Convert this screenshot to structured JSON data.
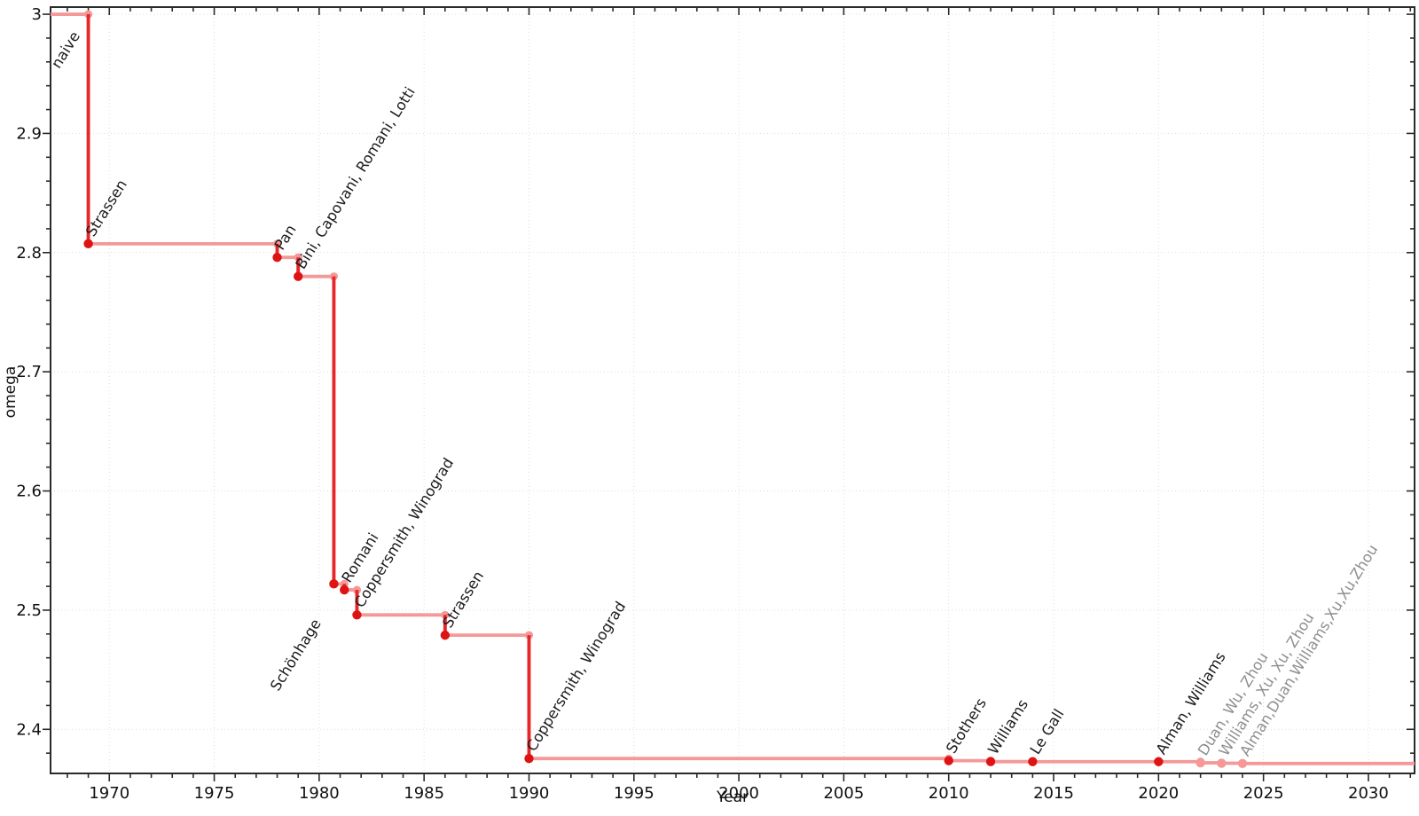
{
  "page": {
    "background": "#ffffff"
  },
  "chart_data": {
    "type": "line",
    "variant": "step-post-with-vertical-drops",
    "title": "",
    "xlabel": "Year",
    "ylabel": "omega",
    "xlim": [
      1967.2,
      2032.2
    ],
    "ylim": [
      2.363,
      3.006
    ],
    "x_major_ticks": [
      1970,
      1975,
      1980,
      1985,
      1990,
      1995,
      2000,
      2005,
      2010,
      2015,
      2020,
      2025,
      2030
    ],
    "x_minor_step": 1,
    "y_major_ticks": [
      2.4,
      2.5,
      2.6,
      2.7,
      2.8,
      2.9,
      3
    ],
    "y_tick_labels": [
      "2.4",
      "2.5",
      "2.6",
      "2.7",
      "2.8",
      "2.9",
      "3"
    ],
    "y_minor_step": 0.02,
    "grid": "dotted-at-major-ticks",
    "legend_position": "none",
    "initial": {
      "label": "naive",
      "omega": 3,
      "label_side": "below"
    },
    "points": [
      {
        "year": 1969,
        "omega": 2.8074,
        "label": "Strassen"
      },
      {
        "year": 1978,
        "omega": 2.796,
        "label": "Pan"
      },
      {
        "year": 1979,
        "omega": 2.78,
        "label": "Bini, Capovani, Romani, Lotti"
      },
      {
        "year": 1980.7,
        "omega": 2.522,
        "label": "Schönhage",
        "label_side": "below"
      },
      {
        "year": 1981.2,
        "omega": 2.517,
        "label": "Romani"
      },
      {
        "year": 1981.8,
        "omega": 2.496,
        "label": "Coppersmith, Winograd"
      },
      {
        "year": 1986,
        "omega": 2.479,
        "label": "Strassen"
      },
      {
        "year": 1990,
        "omega": 2.3755,
        "label": "Coppersmith, Winograd"
      },
      {
        "year": 2010,
        "omega": 2.3737,
        "label": "Stothers"
      },
      {
        "year": 2012,
        "omega": 2.3729,
        "label": "Williams"
      },
      {
        "year": 2014,
        "omega": 2.37287,
        "label": "Le Gall"
      },
      {
        "year": 2020,
        "omega": 2.37286,
        "label": "Alman, Williams"
      },
      {
        "year": 2022,
        "omega": 2.37187,
        "label": "Duan, Wu, Zhou",
        "recent": true
      },
      {
        "year": 2023,
        "omega": 2.37155,
        "label": "Williams, Xu, Xu, Zhou",
        "recent": true
      },
      {
        "year": 2024,
        "omega": 2.37134,
        "label": "Alman,Duan,Williams,Xu,Xu,Zhou",
        "recent": true
      }
    ]
  },
  "style": {
    "step_line_color": "#f49898",
    "drop_line_color": "#e62629",
    "point_color": "#de1414",
    "recent_point_color": "#f49898",
    "label_color": "#1c1c1c",
    "recent_label_color": "#8f8f8f",
    "grid_color": "#dedede",
    "axis_color": "#2a2a2a",
    "tick_label_color": "#111111"
  }
}
